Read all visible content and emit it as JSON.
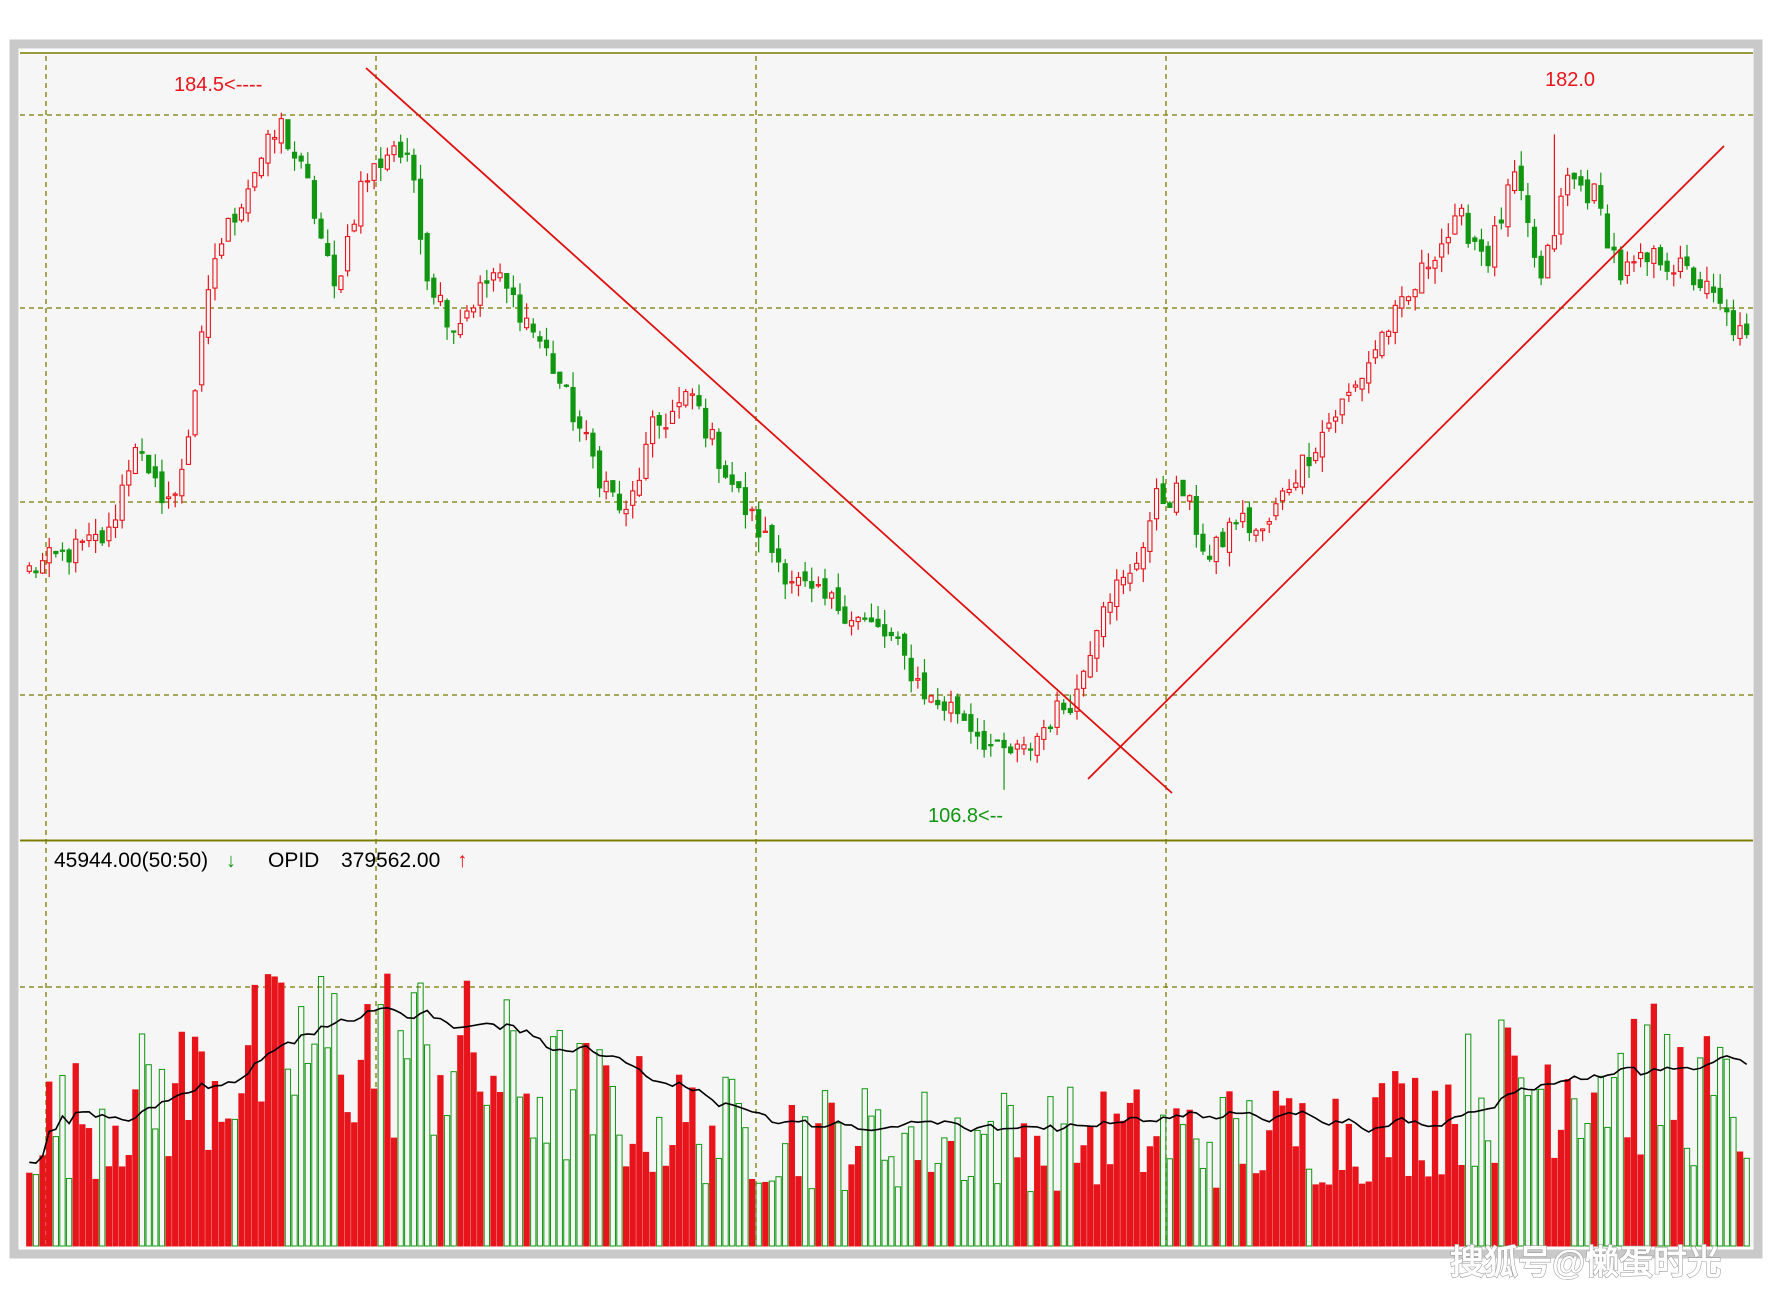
{
  "colors": {
    "up": "#e8141b",
    "down": "#119611",
    "frame": "#c9c9c9",
    "panel_bg": "#f6f6f6",
    "grid": "#7a7a00",
    "trendline": "#e01010",
    "ma_line": "#000000",
    "watermark": "#ffffff"
  },
  "indicator_bar": {
    "volume_readout": "45944.00(50:50)",
    "volume_arrow": "↓",
    "indicator_name": "OPID",
    "indicator_value": "379562.00",
    "indicator_arrow": "↑"
  },
  "watermark": "搜狐号@懒蛋时光",
  "chart_data": {
    "type": "candlestick",
    "n": 260,
    "ylim": [
      101.5,
      191.0
    ],
    "grid": true,
    "annotations": {
      "high_left": "184.5<----",
      "high_right": "182.0",
      "low": "106.8<--"
    },
    "key_points": {
      "high_left": 184.5,
      "low": 106.8,
      "high_right": 182.0
    },
    "close_anchors": [
      [
        0,
        132
      ],
      [
        12,
        136
      ],
      [
        16,
        147
      ],
      [
        18,
        142
      ],
      [
        22,
        140
      ],
      [
        24,
        148
      ],
      [
        28,
        168
      ],
      [
        34,
        178
      ],
      [
        38,
        183
      ],
      [
        42,
        176
      ],
      [
        46,
        164
      ],
      [
        50,
        176
      ],
      [
        55,
        181
      ],
      [
        58,
        177
      ],
      [
        60,
        166
      ],
      [
        64,
        160
      ],
      [
        70,
        166
      ],
      [
        74,
        162
      ],
      [
        78,
        157
      ],
      [
        86,
        143
      ],
      [
        90,
        138
      ],
      [
        94,
        148
      ],
      [
        100,
        152
      ],
      [
        104,
        145
      ],
      [
        108,
        139
      ],
      [
        114,
        132
      ],
      [
        118,
        129
      ],
      [
        122,
        128
      ],
      [
        130,
        124
      ],
      [
        136,
        117
      ],
      [
        140,
        116
      ],
      [
        146,
        111
      ],
      [
        150,
        111
      ],
      [
        154,
        115
      ],
      [
        158,
        118
      ],
      [
        162,
        129
      ],
      [
        166,
        131
      ],
      [
        170,
        140
      ],
      [
        174,
        141
      ],
      [
        178,
        133
      ],
      [
        182,
        138
      ],
      [
        186,
        136
      ],
      [
        190,
        142
      ],
      [
        196,
        149
      ],
      [
        200,
        153
      ],
      [
        204,
        159
      ],
      [
        208,
        163
      ],
      [
        212,
        169
      ],
      [
        216,
        172
      ],
      [
        220,
        168
      ],
      [
        224,
        177
      ],
      [
        228,
        165
      ],
      [
        232,
        177
      ],
      [
        236,
        175
      ],
      [
        240,
        166
      ],
      [
        246,
        168
      ],
      [
        252,
        165
      ],
      [
        259,
        158
      ]
    ],
    "volume_ylim": [
      0,
      100000
    ],
    "volume_ma_label": "OPID"
  }
}
